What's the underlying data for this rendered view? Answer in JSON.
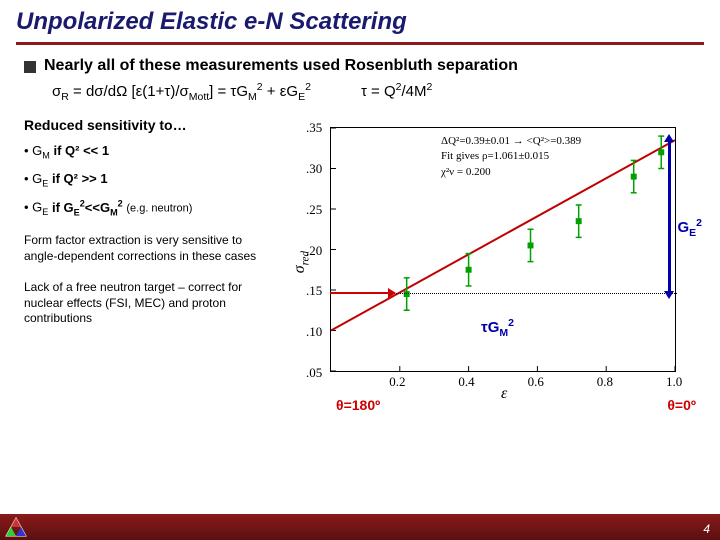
{
  "title": "Unpolarized Elastic e-N Scattering",
  "bullet": "Nearly all of these measurements used Rosenbluth separation",
  "formula_left": "σR = dσ/dΩ [ε(1+τ)/σMott] = τGM² + εGE²",
  "formula_right": "τ = Q²/4M²",
  "sens_title": "Reduced sensitivity to…",
  "sens1_label": "GM",
  "sens1_cond": "if Q² << 1",
  "sens2_label": "GE",
  "sens2_cond": "if Q² >> 1",
  "sens3_label": "GE",
  "sens3_cond": "if GE²<<GM²",
  "sens3_note": "(e.g. neutron)",
  "para1": "Form factor extraction is very sensitive to angle-dependent corrections in these cases",
  "para2": "Lack of a free neutron target – correct for nuclear effects (FSI, MEC) and proton contributions",
  "chart": {
    "type": "scatter-with-fit",
    "ylabel": "σred",
    "xlabel": "ε",
    "xlim": [
      0,
      1.0
    ],
    "ylim": [
      0.05,
      0.35
    ],
    "xticks": [
      0.2,
      0.4,
      0.6,
      0.8,
      1.0
    ],
    "yticks": [
      0.05,
      0.1,
      0.15,
      0.2,
      0.25,
      0.3,
      0.35
    ],
    "legend_line1": "ΔQ²=0.39±0.01 → <Q²>=0.389",
    "legend_line2": "Fit gives ρ=1.061±0.015",
    "legend_line3": "χ²ν = 0.200",
    "points_x": [
      0.22,
      0.4,
      0.58,
      0.72,
      0.88,
      0.96
    ],
    "points_y": [
      0.145,
      0.175,
      0.205,
      0.235,
      0.29,
      0.32
    ],
    "point_err": 0.02,
    "point_color": "#00a000",
    "fit_color": "#c00000",
    "fit_intercept_y_at_x0": 0.1,
    "fit_y_at_x1": 0.335,
    "dotted_y": 0.148,
    "background": "#ffffff"
  },
  "annotations": {
    "ge2": "GE²",
    "tgm2": "τGM²",
    "theta_left": "θ=180º",
    "theta_right": "θ=0º"
  },
  "pagenum": "4",
  "colors": {
    "title": "#1a1a6e",
    "rule": "#8b1a1a",
    "footer": "#8b1a1a",
    "red": "#c00000",
    "blue": "#0000aa",
    "green": "#00a000"
  }
}
